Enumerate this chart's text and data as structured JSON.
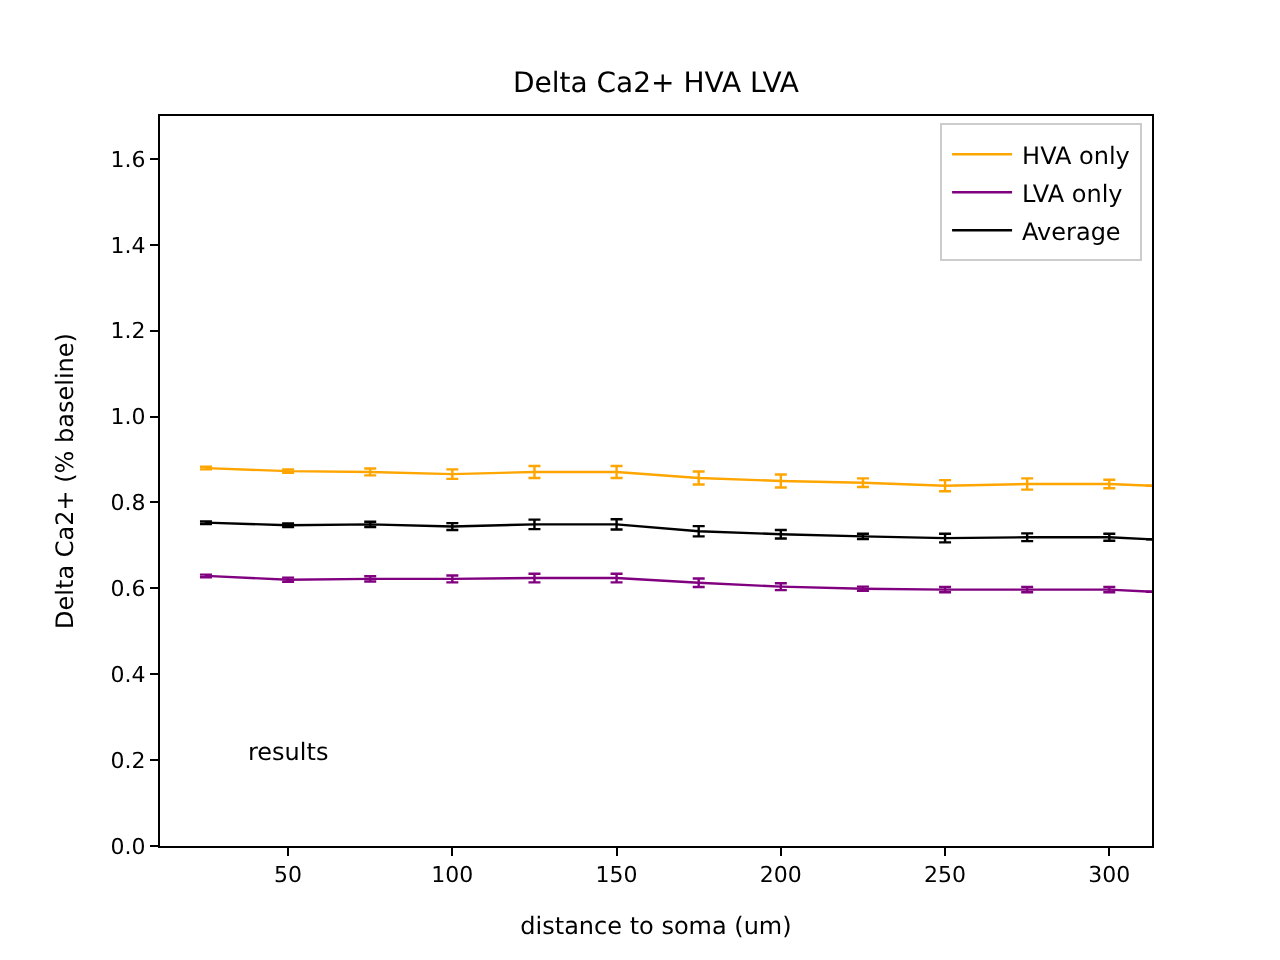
{
  "chart_data": {
    "type": "line",
    "title": "Delta Ca2+ HVA LVA",
    "xlabel": "distance to soma (um)",
    "ylabel": "Delta Ca2+ (% baseline)",
    "x": [
      25,
      50,
      75,
      100,
      125,
      150,
      175,
      200,
      225,
      250,
      275,
      300,
      313
    ],
    "series": [
      {
        "name": "HVA only",
        "color": "#ffa500",
        "values": [
          0.88,
          0.873,
          0.871,
          0.866,
          0.871,
          0.871,
          0.857,
          0.85,
          0.846,
          0.839,
          0.843,
          0.843,
          0.839
        ],
        "errors": [
          0.003,
          0.004,
          0.008,
          0.011,
          0.014,
          0.014,
          0.015,
          0.015,
          0.01,
          0.013,
          0.013,
          0.01,
          null
        ]
      },
      {
        "name": "LVA only",
        "color": "#800080",
        "values": [
          0.629,
          0.62,
          0.622,
          0.622,
          0.624,
          0.624,
          0.613,
          0.604,
          0.599,
          0.597,
          0.597,
          0.597,
          0.592
        ],
        "errors": [
          0.003,
          0.005,
          0.006,
          0.008,
          0.01,
          0.01,
          0.01,
          0.008,
          0.005,
          0.006,
          0.006,
          0.006,
          null
        ]
      },
      {
        "name": "Average",
        "color": "#000000",
        "values": [
          0.753,
          0.747,
          0.749,
          0.744,
          0.749,
          0.749,
          0.733,
          0.726,
          0.721,
          0.717,
          0.719,
          0.719,
          0.714
        ],
        "errors": [
          0.003,
          0.004,
          0.006,
          0.008,
          0.011,
          0.012,
          0.012,
          0.01,
          0.006,
          0.01,
          0.009,
          0.008,
          null
        ]
      }
    ],
    "xlim": [
      11,
      313
    ],
    "xticks": [
      50,
      100,
      150,
      200,
      250,
      300
    ],
    "ylim": [
      0,
      1.7
    ],
    "yticks": [
      {
        "value": 0,
        "label": "0.0"
      },
      {
        "value": 0.2,
        "label": "0.2"
      },
      {
        "value": 0.4,
        "label": "0.4"
      },
      {
        "value": 0.6,
        "label": "0.6"
      },
      {
        "value": 0.8,
        "label": "0.8"
      },
      {
        "value": 1.0,
        "label": "1.0"
      },
      {
        "value": 1.2,
        "label": "1.2"
      },
      {
        "value": 1.4,
        "label": "1.4"
      },
      {
        "value": 1.6,
        "label": "1.6"
      }
    ],
    "annotations": [
      "results"
    ],
    "legend": "top right",
    "line_style": "solid"
  }
}
